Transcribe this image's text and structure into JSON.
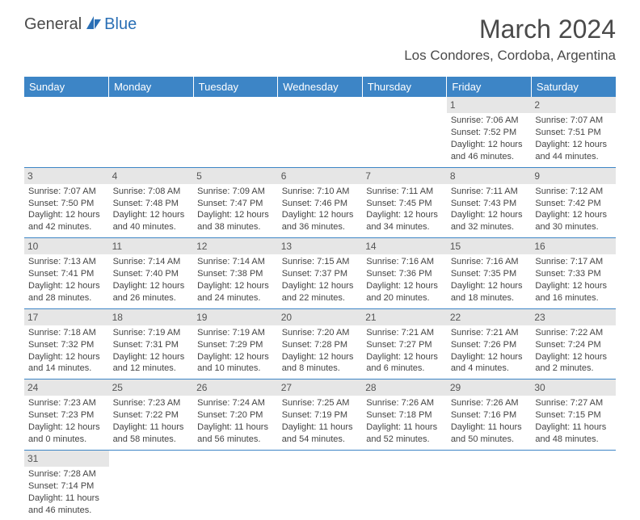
{
  "brand": {
    "part1": "General",
    "part2": "Blue",
    "color_general": "#4a4a4a",
    "color_blue": "#2a6fb5",
    "sail_color": "#2a6fb5"
  },
  "title": "March 2024",
  "location": "Los Condores, Cordoba, Argentina",
  "theme": {
    "header_bg": "#3d85c6",
    "header_fg": "#ffffff",
    "daynum_bg": "#e6e6e6",
    "cell_border": "#3d85c6"
  },
  "weekdays": [
    "Sunday",
    "Monday",
    "Tuesday",
    "Wednesday",
    "Thursday",
    "Friday",
    "Saturday"
  ],
  "weeks": [
    [
      {
        "empty": true
      },
      {
        "empty": true
      },
      {
        "empty": true
      },
      {
        "empty": true
      },
      {
        "empty": true
      },
      {
        "num": "1",
        "sunrise": "Sunrise: 7:06 AM",
        "sunset": "Sunset: 7:52 PM",
        "day1": "Daylight: 12 hours",
        "day2": "and 46 minutes."
      },
      {
        "num": "2",
        "sunrise": "Sunrise: 7:07 AM",
        "sunset": "Sunset: 7:51 PM",
        "day1": "Daylight: 12 hours",
        "day2": "and 44 minutes."
      }
    ],
    [
      {
        "num": "3",
        "sunrise": "Sunrise: 7:07 AM",
        "sunset": "Sunset: 7:50 PM",
        "day1": "Daylight: 12 hours",
        "day2": "and 42 minutes."
      },
      {
        "num": "4",
        "sunrise": "Sunrise: 7:08 AM",
        "sunset": "Sunset: 7:48 PM",
        "day1": "Daylight: 12 hours",
        "day2": "and 40 minutes."
      },
      {
        "num": "5",
        "sunrise": "Sunrise: 7:09 AM",
        "sunset": "Sunset: 7:47 PM",
        "day1": "Daylight: 12 hours",
        "day2": "and 38 minutes."
      },
      {
        "num": "6",
        "sunrise": "Sunrise: 7:10 AM",
        "sunset": "Sunset: 7:46 PM",
        "day1": "Daylight: 12 hours",
        "day2": "and 36 minutes."
      },
      {
        "num": "7",
        "sunrise": "Sunrise: 7:11 AM",
        "sunset": "Sunset: 7:45 PM",
        "day1": "Daylight: 12 hours",
        "day2": "and 34 minutes."
      },
      {
        "num": "8",
        "sunrise": "Sunrise: 7:11 AM",
        "sunset": "Sunset: 7:43 PM",
        "day1": "Daylight: 12 hours",
        "day2": "and 32 minutes."
      },
      {
        "num": "9",
        "sunrise": "Sunrise: 7:12 AM",
        "sunset": "Sunset: 7:42 PM",
        "day1": "Daylight: 12 hours",
        "day2": "and 30 minutes."
      }
    ],
    [
      {
        "num": "10",
        "sunrise": "Sunrise: 7:13 AM",
        "sunset": "Sunset: 7:41 PM",
        "day1": "Daylight: 12 hours",
        "day2": "and 28 minutes."
      },
      {
        "num": "11",
        "sunrise": "Sunrise: 7:14 AM",
        "sunset": "Sunset: 7:40 PM",
        "day1": "Daylight: 12 hours",
        "day2": "and 26 minutes."
      },
      {
        "num": "12",
        "sunrise": "Sunrise: 7:14 AM",
        "sunset": "Sunset: 7:38 PM",
        "day1": "Daylight: 12 hours",
        "day2": "and 24 minutes."
      },
      {
        "num": "13",
        "sunrise": "Sunrise: 7:15 AM",
        "sunset": "Sunset: 7:37 PM",
        "day1": "Daylight: 12 hours",
        "day2": "and 22 minutes."
      },
      {
        "num": "14",
        "sunrise": "Sunrise: 7:16 AM",
        "sunset": "Sunset: 7:36 PM",
        "day1": "Daylight: 12 hours",
        "day2": "and 20 minutes."
      },
      {
        "num": "15",
        "sunrise": "Sunrise: 7:16 AM",
        "sunset": "Sunset: 7:35 PM",
        "day1": "Daylight: 12 hours",
        "day2": "and 18 minutes."
      },
      {
        "num": "16",
        "sunrise": "Sunrise: 7:17 AM",
        "sunset": "Sunset: 7:33 PM",
        "day1": "Daylight: 12 hours",
        "day2": "and 16 minutes."
      }
    ],
    [
      {
        "num": "17",
        "sunrise": "Sunrise: 7:18 AM",
        "sunset": "Sunset: 7:32 PM",
        "day1": "Daylight: 12 hours",
        "day2": "and 14 minutes."
      },
      {
        "num": "18",
        "sunrise": "Sunrise: 7:19 AM",
        "sunset": "Sunset: 7:31 PM",
        "day1": "Daylight: 12 hours",
        "day2": "and 12 minutes."
      },
      {
        "num": "19",
        "sunrise": "Sunrise: 7:19 AM",
        "sunset": "Sunset: 7:29 PM",
        "day1": "Daylight: 12 hours",
        "day2": "and 10 minutes."
      },
      {
        "num": "20",
        "sunrise": "Sunrise: 7:20 AM",
        "sunset": "Sunset: 7:28 PM",
        "day1": "Daylight: 12 hours",
        "day2": "and 8 minutes."
      },
      {
        "num": "21",
        "sunrise": "Sunrise: 7:21 AM",
        "sunset": "Sunset: 7:27 PM",
        "day1": "Daylight: 12 hours",
        "day2": "and 6 minutes."
      },
      {
        "num": "22",
        "sunrise": "Sunrise: 7:21 AM",
        "sunset": "Sunset: 7:26 PM",
        "day1": "Daylight: 12 hours",
        "day2": "and 4 minutes."
      },
      {
        "num": "23",
        "sunrise": "Sunrise: 7:22 AM",
        "sunset": "Sunset: 7:24 PM",
        "day1": "Daylight: 12 hours",
        "day2": "and 2 minutes."
      }
    ],
    [
      {
        "num": "24",
        "sunrise": "Sunrise: 7:23 AM",
        "sunset": "Sunset: 7:23 PM",
        "day1": "Daylight: 12 hours",
        "day2": "and 0 minutes."
      },
      {
        "num": "25",
        "sunrise": "Sunrise: 7:23 AM",
        "sunset": "Sunset: 7:22 PM",
        "day1": "Daylight: 11 hours",
        "day2": "and 58 minutes."
      },
      {
        "num": "26",
        "sunrise": "Sunrise: 7:24 AM",
        "sunset": "Sunset: 7:20 PM",
        "day1": "Daylight: 11 hours",
        "day2": "and 56 minutes."
      },
      {
        "num": "27",
        "sunrise": "Sunrise: 7:25 AM",
        "sunset": "Sunset: 7:19 PM",
        "day1": "Daylight: 11 hours",
        "day2": "and 54 minutes."
      },
      {
        "num": "28",
        "sunrise": "Sunrise: 7:26 AM",
        "sunset": "Sunset: 7:18 PM",
        "day1": "Daylight: 11 hours",
        "day2": "and 52 minutes."
      },
      {
        "num": "29",
        "sunrise": "Sunrise: 7:26 AM",
        "sunset": "Sunset: 7:16 PM",
        "day1": "Daylight: 11 hours",
        "day2": "and 50 minutes."
      },
      {
        "num": "30",
        "sunrise": "Sunrise: 7:27 AM",
        "sunset": "Sunset: 7:15 PM",
        "day1": "Daylight: 11 hours",
        "day2": "and 48 minutes."
      }
    ],
    [
      {
        "num": "31",
        "sunrise": "Sunrise: 7:28 AM",
        "sunset": "Sunset: 7:14 PM",
        "day1": "Daylight: 11 hours",
        "day2": "and 46 minutes."
      },
      {
        "empty": true
      },
      {
        "empty": true
      },
      {
        "empty": true
      },
      {
        "empty": true
      },
      {
        "empty": true
      },
      {
        "empty": true
      }
    ]
  ]
}
